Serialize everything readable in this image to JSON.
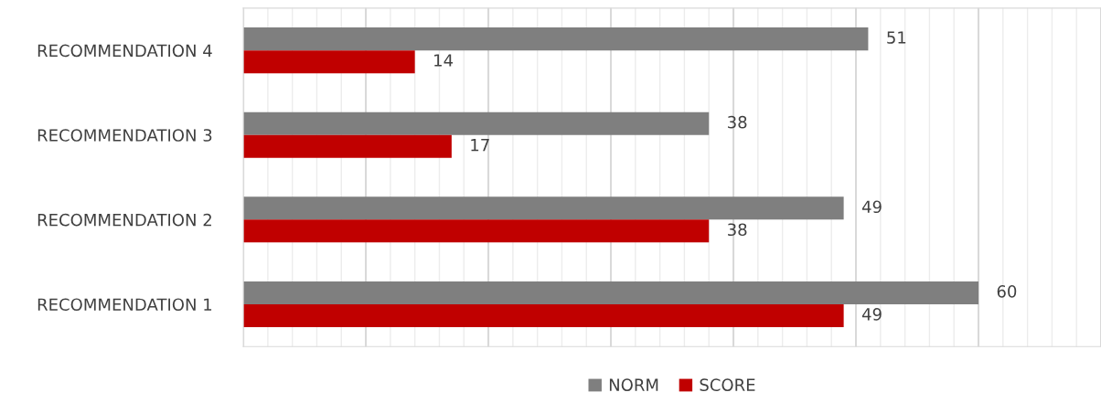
{
  "chart_data": {
    "type": "bar",
    "orientation": "horizontal",
    "categories": [
      "RECOMMENDATION 4",
      "RECOMMENDATION 3",
      "RECOMMENDATION 2",
      "RECOMMENDATION 1"
    ],
    "series": [
      {
        "name": "NORM",
        "color": "#7f7f7f",
        "values": [
          51,
          38,
          49,
          60
        ]
      },
      {
        "name": "SCORE",
        "color": "#c00000",
        "values": [
          14,
          17,
          38,
          49
        ]
      }
    ],
    "xlim": [
      0,
      70
    ],
    "xticks": [
      {
        "value": 0,
        "label": null
      },
      {
        "value": 10,
        "label": null
      },
      {
        "value": 20,
        "label": null
      },
      {
        "value": 30,
        "label": null
      },
      {
        "value": 40,
        "label": null
      },
      {
        "value": 50,
        "label": null
      },
      {
        "value": 60,
        "label": null
      },
      {
        "value": 70,
        "label": null
      }
    ],
    "tick_labels": "y",
    "grid": "x",
    "data_labels": true,
    "legend": "bottom"
  }
}
